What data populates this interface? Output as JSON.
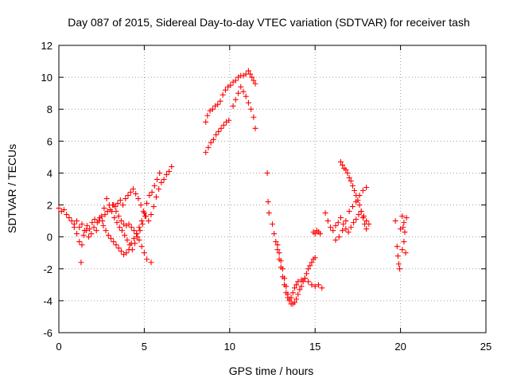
{
  "chart_data": {
    "type": "scatter",
    "title": "Day 087 of 2015, Sidereal Day-to-day VTEC variation (SDTVAR) for receiver tash",
    "xlabel": "GPS time / hours",
    "ylabel": "SDTVAR / TECUs",
    "xlim": [
      0,
      25
    ],
    "ylim": [
      -6,
      12
    ],
    "xticks": [
      "0",
      "5",
      "10",
      "15",
      "20",
      "25"
    ],
    "yticks": [
      "-6",
      "-4",
      "-2",
      "0",
      "2",
      "4",
      "6",
      "8",
      "10",
      "12"
    ],
    "grid": true,
    "marker": "+",
    "series": [
      {
        "name": "SDTVAR",
        "color": "#ff0000",
        "x": [
          0.0,
          0.15,
          0.3,
          0.45,
          0.6,
          0.75,
          0.9,
          1.05,
          1.2,
          1.35,
          1.5,
          1.65,
          1.8,
          1.95,
          2.1,
          2.25,
          2.4,
          2.55,
          2.7,
          2.85,
          3.0,
          3.15,
          3.3,
          3.45,
          3.6,
          3.75,
          3.9,
          4.05,
          4.2,
          4.35,
          4.5,
          4.65,
          4.8,
          4.95,
          5.1,
          5.25,
          5.4,
          5.55,
          5.7,
          5.85,
          6.0,
          6.15,
          6.3,
          6.45,
          6.6,
          0.9,
          1.05,
          1.2,
          1.3,
          1.35,
          1.45,
          1.6,
          1.75,
          1.9,
          2.05,
          2.2,
          2.35,
          2.5,
          2.65,
          2.8,
          2.95,
          3.1,
          3.25,
          3.4,
          3.55,
          3.7,
          3.85,
          4.0,
          4.15,
          4.3,
          4.45,
          4.6,
          4.75,
          4.9,
          5.05,
          5.4,
          2.6,
          2.75,
          2.9,
          3.05,
          3.2,
          3.35,
          3.5,
          3.65,
          3.8,
          3.95,
          4.1,
          4.25,
          4.4,
          4.55,
          4.7,
          4.85,
          5.0,
          5.15,
          5.3,
          5.45,
          5.6,
          5.75,
          5.9,
          3.2,
          3.35,
          3.5,
          3.65,
          3.8,
          3.95,
          4.1,
          4.25,
          4.4,
          4.55,
          4.7,
          4.85,
          5.0,
          5.15,
          8.6,
          8.75,
          8.9,
          9.05,
          9.2,
          9.35,
          9.5,
          9.65,
          9.8,
          9.95,
          8.6,
          8.7,
          8.85,
          9.0,
          9.15,
          9.3,
          9.45,
          9.6,
          9.75,
          9.9,
          10.05,
          10.2,
          10.35,
          10.5,
          10.65,
          10.8,
          10.95,
          11.1,
          11.2,
          11.3,
          11.4,
          11.5,
          10.2,
          10.35,
          10.5,
          10.65,
          10.8,
          10.95,
          11.1,
          11.25,
          11.4,
          11.5,
          12.2,
          12.25,
          12.3,
          12.5,
          12.6,
          12.7,
          12.8,
          12.9,
          13.0,
          13.1,
          13.2,
          13.3,
          13.4,
          13.5,
          13.6,
          13.7,
          13.8,
          13.9,
          14.0,
          14.1,
          14.2,
          14.3,
          14.4,
          14.5,
          14.6,
          14.7,
          14.8,
          14.9,
          15.0,
          12.8,
          12.9,
          13.0,
          13.1,
          13.2,
          13.3,
          13.4,
          13.5,
          13.6,
          13.7,
          13.8,
          13.9,
          14.0,
          14.2,
          14.4,
          14.6,
          14.8,
          15.0,
          15.2,
          15.4,
          14.9,
          15.0,
          15.1,
          15.2,
          15.3,
          15.6,
          15.75,
          15.9,
          16.05,
          16.2,
          16.35,
          16.5,
          16.65,
          16.8,
          16.95,
          17.1,
          17.25,
          17.4,
          17.55,
          17.7,
          17.85,
          18.0,
          18.15,
          16.5,
          16.6,
          16.7,
          16.8,
          16.9,
          17.0,
          17.1,
          17.2,
          17.3,
          17.4,
          17.5,
          17.6,
          17.7,
          17.8,
          17.9,
          18.0,
          16.2,
          16.4,
          16.6,
          16.8,
          17.0,
          17.2,
          17.4,
          17.6,
          17.8,
          18.0,
          19.7,
          19.8,
          19.85,
          19.9,
          19.95,
          20.0,
          20.1,
          20.15,
          20.2,
          20.25,
          20.3,
          20.35,
          20.1,
          20.2
        ],
        "y": [
          1.8,
          1.6,
          1.7,
          1.4,
          1.2,
          1.0,
          0.8,
          1.0,
          0.6,
          0.8,
          0.4,
          0.7,
          0.5,
          0.9,
          1.1,
          0.9,
          1.2,
          1.0,
          1.4,
          1.6,
          1.7,
          2.0,
          1.9,
          2.1,
          2.3,
          2.0,
          2.4,
          2.6,
          2.8,
          3.0,
          2.7,
          2.4,
          2.0,
          1.6,
          1.3,
          1.0,
          1.4,
          1.9,
          2.5,
          3.0,
          3.4,
          3.6,
          3.9,
          4.1,
          4.4,
          0.6,
          0.2,
          -0.3,
          -1.6,
          -0.5,
          0.1,
          0.4,
          0.0,
          0.2,
          0.6,
          0.4,
          1.0,
          1.3,
          1.8,
          2.4,
          2.0,
          1.6,
          1.2,
          0.9,
          0.6,
          0.4,
          0.1,
          -0.2,
          -0.5,
          -0.8,
          -0.4,
          0.0,
          0.4,
          0.8,
          1.3,
          -1.6,
          0.7,
          0.4,
          0.1,
          -0.1,
          -0.3,
          -0.5,
          -0.7,
          -0.9,
          -1.1,
          -1.0,
          -0.8,
          -0.4,
          -0.1,
          0.2,
          0.6,
          1.0,
          1.5,
          2.1,
          2.6,
          2.8,
          3.2,
          3.6,
          4.0,
          2.0,
          1.6,
          1.3,
          1.0,
          0.8,
          0.7,
          0.8,
          0.6,
          0.4,
          0.2,
          -0.2,
          -0.6,
          -1.0,
          -1.4,
          5.3,
          5.6,
          5.9,
          6.1,
          6.4,
          6.6,
          6.8,
          7.0,
          7.2,
          7.3,
          7.2,
          7.6,
          7.9,
          8.0,
          8.2,
          8.3,
          8.5,
          8.9,
          9.2,
          9.4,
          9.5,
          9.7,
          9.8,
          10.0,
          10.1,
          10.1,
          10.2,
          10.4,
          10.2,
          10.0,
          9.8,
          9.6,
          8.2,
          8.6,
          9.0,
          9.4,
          9.1,
          8.8,
          8.4,
          8.0,
          7.5,
          6.8,
          4.0,
          2.2,
          1.5,
          0.8,
          0.2,
          -0.3,
          -0.8,
          -1.4,
          -1.9,
          -2.5,
          -3.0,
          -3.5,
          -3.8,
          -4.0,
          -4.2,
          -4.2,
          -4.1,
          -3.9,
          -3.6,
          -3.3,
          -3.1,
          -2.8,
          -2.6,
          -2.3,
          -2.0,
          -1.8,
          -1.6,
          -1.4,
          -1.3,
          -0.5,
          -1.0,
          -1.5,
          -2.0,
          -2.6,
          -3.1,
          -3.6,
          -3.9,
          -3.8,
          -3.5,
          -3.2,
          -3.0,
          -2.8,
          -2.7,
          -2.6,
          -2.8,
          -3.0,
          -3.1,
          -3.0,
          -3.2,
          0.3,
          0.2,
          0.4,
          0.3,
          0.2,
          1.5,
          1.0,
          0.6,
          0.4,
          0.7,
          0.9,
          1.2,
          0.8,
          0.5,
          0.3,
          0.6,
          0.9,
          1.1,
          1.4,
          1.6,
          1.3,
          1.0,
          0.8,
          4.7,
          4.5,
          4.3,
          4.2,
          4.0,
          3.7,
          3.5,
          3.2,
          2.9,
          2.6,
          2.3,
          2.0,
          1.6,
          1.2,
          0.8,
          0.5,
          -0.2,
          0.0,
          0.4,
          1.0,
          1.6,
          1.9,
          2.2,
          2.6,
          2.9,
          3.1,
          1.0,
          -0.6,
          -1.2,
          -1.7,
          -2.0,
          0.5,
          1.3,
          0.6,
          -0.3,
          0.3,
          -1.0,
          1.2,
          -0.8,
          0.9
        ]
      }
    ]
  }
}
